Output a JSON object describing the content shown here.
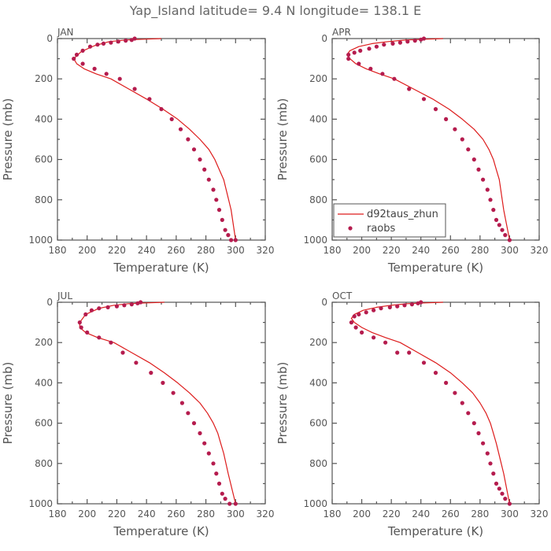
{
  "figure": {
    "title": "Yap_Island   latitude= 9.4 N longitude= 138.1 E"
  },
  "colors": {
    "model": "#dd1c1c",
    "obs": "#b51c4e",
    "axis": "#555555"
  },
  "chart_data": [
    {
      "type": "line",
      "panel_label": "JAN",
      "xlabel": "Temperature (K)",
      "ylabel": "Pressure (mb)",
      "xlim": [
        180,
        320
      ],
      "xticks": [
        180,
        200,
        220,
        240,
        260,
        280,
        300,
        320
      ],
      "ylim": [
        1000,
        0
      ],
      "yticks": [
        0,
        200,
        400,
        600,
        800,
        1000
      ],
      "series": [
        {
          "name": "d92taus_zhun",
          "kind": "line",
          "x": [
            250,
            238,
            226,
            215,
            205,
            196,
            191,
            193,
            198,
            206,
            216,
            228,
            240,
            251,
            261,
            269,
            276,
            282,
            286,
            289,
            292,
            297,
            300
          ],
          "y": [
            0,
            3,
            7,
            15,
            35,
            65,
            100,
            125,
            150,
            175,
            200,
            250,
            300,
            350,
            400,
            450,
            500,
            550,
            600,
            650,
            700,
            850,
            1000
          ]
        },
        {
          "name": "raobs",
          "kind": "scatter",
          "x": [
            232,
            230,
            226,
            221,
            216,
            211,
            207,
            202,
            197,
            193,
            191,
            197,
            205,
            213,
            222,
            232,
            242,
            250,
            257,
            263,
            268,
            272,
            276,
            279,
            282,
            285,
            287,
            289,
            291,
            293,
            295,
            297,
            300
          ],
          "y": [
            0,
            7,
            10,
            15,
            20,
            25,
            30,
            40,
            60,
            80,
            100,
            125,
            150,
            175,
            200,
            250,
            300,
            350,
            400,
            450,
            500,
            550,
            600,
            650,
            700,
            750,
            800,
            850,
            900,
            950,
            975,
            1000,
            1000
          ]
        }
      ]
    },
    {
      "type": "line",
      "panel_label": "APR",
      "xlabel": "Temperature (K)",
      "ylabel": "Pressure (mb)",
      "xlim": [
        180,
        320
      ],
      "xticks": [
        180,
        200,
        220,
        240,
        260,
        280,
        300,
        320
      ],
      "ylim": [
        1000,
        0
      ],
      "yticks": [
        0,
        200,
        400,
        600,
        800,
        1000
      ],
      "legend": {
        "position": "bottom-left",
        "entries": [
          "d92taus_zhun",
          "raobs"
        ]
      },
      "series": [
        {
          "name": "d92taus_zhun",
          "kind": "line",
          "x": [
            255,
            243,
            230,
            218,
            207,
            198,
            192,
            190,
            192,
            196,
            203,
            212,
            222,
            235,
            248,
            259,
            268,
            276,
            282,
            286,
            289,
            291,
            293,
            296,
            300
          ],
          "y": [
            0,
            3,
            7,
            15,
            25,
            40,
            60,
            80,
            100,
            125,
            150,
            175,
            200,
            250,
            300,
            350,
            400,
            450,
            500,
            550,
            600,
            650,
            700,
            850,
            1000
          ]
        },
        {
          "name": "raobs",
          "kind": "scatter",
          "x": [
            242,
            240,
            236,
            231,
            226,
            221,
            215,
            210,
            205,
            199,
            195,
            191,
            191,
            198,
            206,
            214,
            222,
            232,
            242,
            250,
            257,
            263,
            268,
            272,
            276,
            279,
            282,
            285,
            287,
            289,
            291,
            293,
            295,
            297,
            300
          ],
          "y": [
            0,
            5,
            10,
            15,
            20,
            25,
            30,
            40,
            50,
            60,
            70,
            80,
            100,
            125,
            150,
            175,
            200,
            250,
            300,
            350,
            400,
            450,
            500,
            550,
            600,
            650,
            700,
            750,
            800,
            850,
            900,
            925,
            950,
            975,
            1000
          ]
        }
      ]
    },
    {
      "type": "line",
      "panel_label": "JUL",
      "xlabel": "Temperature (K)",
      "ylabel": "Pressure (mb)",
      "xlim": [
        180,
        320
      ],
      "xticks": [
        180,
        200,
        220,
        240,
        260,
        280,
        300,
        320
      ],
      "ylim": [
        1000,
        0
      ],
      "yticks": [
        0,
        200,
        400,
        600,
        800,
        1000
      ],
      "series": [
        {
          "name": "d92taus_zhun",
          "kind": "line",
          "x": [
            252,
            240,
            228,
            218,
            208,
            199,
            195,
            195,
            199,
            207,
            218,
            230,
            242,
            252,
            261,
            269,
            276,
            281,
            285,
            288,
            290,
            292,
            295,
            300
          ],
          "y": [
            0,
            3,
            7,
            15,
            30,
            60,
            100,
            125,
            150,
            175,
            200,
            250,
            300,
            350,
            400,
            450,
            500,
            550,
            600,
            650,
            700,
            750,
            850,
            1000
          ]
        },
        {
          "name": "raobs",
          "kind": "scatter",
          "x": [
            236,
            234,
            230,
            225,
            220,
            214,
            208,
            203,
            199,
            195,
            196,
            200,
            208,
            216,
            224,
            233,
            243,
            251,
            258,
            264,
            268,
            272,
            276,
            279,
            282,
            285,
            287,
            289,
            291,
            293,
            296,
            300
          ],
          "y": [
            0,
            5,
            10,
            15,
            20,
            25,
            30,
            40,
            60,
            100,
            125,
            150,
            175,
            200,
            250,
            300,
            350,
            400,
            450,
            500,
            550,
            600,
            650,
            700,
            750,
            800,
            850,
            900,
            950,
            975,
            1000,
            1000
          ]
        }
      ]
    },
    {
      "type": "line",
      "panel_label": "OCT",
      "xlabel": "Temperature (K)",
      "ylabel": "Pressure (mb)",
      "xlim": [
        180,
        320
      ],
      "xticks": [
        180,
        200,
        220,
        240,
        260,
        280,
        300,
        320
      ],
      "ylim": [
        1000,
        0
      ],
      "yticks": [
        0,
        200,
        400,
        600,
        800,
        1000
      ],
      "series": [
        {
          "name": "d92taus_zhun",
          "kind": "line",
          "x": [
            255,
            243,
            231,
            220,
            210,
            201,
            195,
            193,
            195,
            200,
            207,
            216,
            226,
            238,
            250,
            260,
            268,
            275,
            280,
            284,
            287,
            289,
            291,
            296,
            300
          ],
          "y": [
            0,
            3,
            7,
            15,
            25,
            40,
            60,
            80,
            100,
            125,
            150,
            175,
            200,
            250,
            300,
            350,
            400,
            450,
            500,
            550,
            600,
            650,
            700,
            850,
            1000
          ]
        },
        {
          "name": "raobs",
          "kind": "scatter",
          "x": [
            240,
            238,
            234,
            229,
            224,
            219,
            213,
            208,
            203,
            198,
            195,
            193,
            196,
            200,
            208,
            216,
            224,
            232,
            242,
            250,
            257,
            263,
            268,
            272,
            276,
            279,
            282,
            285,
            287,
            289,
            291,
            293,
            295,
            297,
            300
          ],
          "y": [
            0,
            5,
            10,
            15,
            20,
            25,
            30,
            40,
            50,
            60,
            70,
            100,
            125,
            150,
            175,
            200,
            250,
            250,
            300,
            350,
            400,
            450,
            500,
            550,
            600,
            650,
            700,
            750,
            800,
            850,
            900,
            925,
            950,
            975,
            1000
          ]
        }
      ]
    }
  ]
}
